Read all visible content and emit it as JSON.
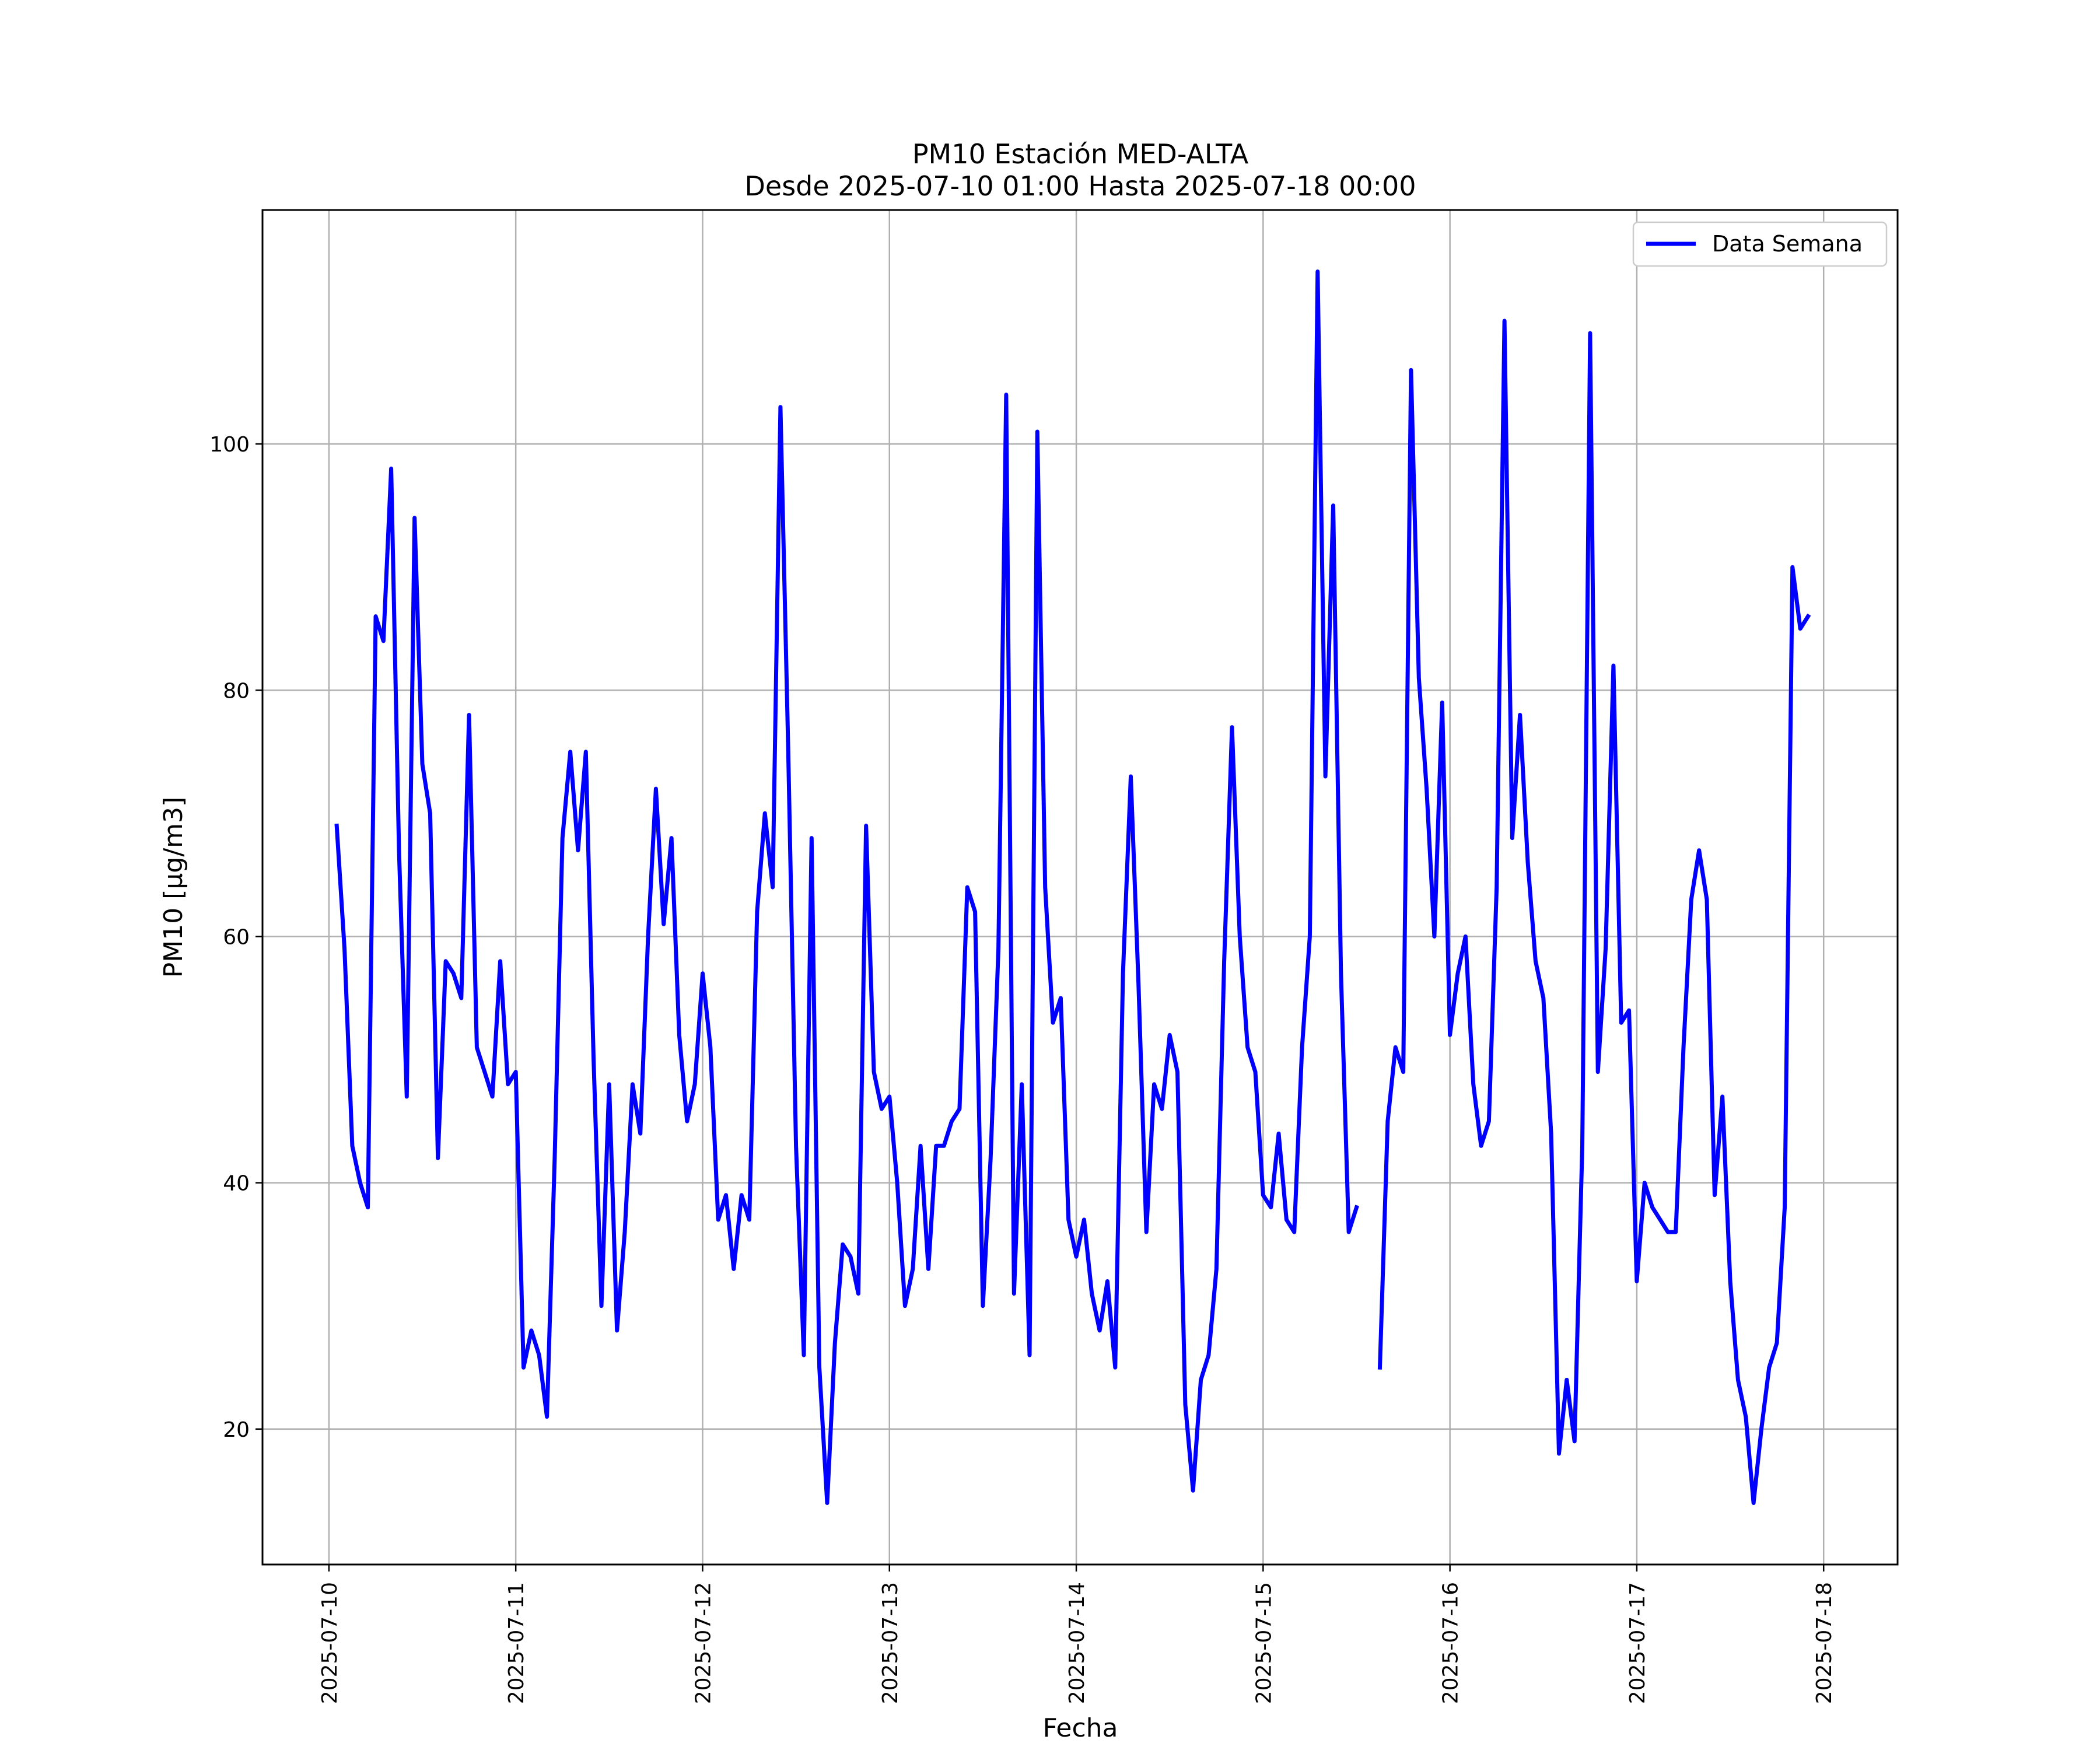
{
  "chart_data": {
    "type": "line",
    "title": "PM10 Estación MED-ALTA",
    "subtitle": "Desde 2025-07-10 01:00 Hasta 2025-07-18 00:00",
    "xlabel": "Fecha",
    "ylabel": "PM10 [μg/m3]",
    "xlim": [
      "2025-07-09T15:28",
      "2025-07-18T09:30"
    ],
    "ylim": [
      9,
      119
    ],
    "x_ticks": [
      "2025-07-10",
      "2025-07-11",
      "2025-07-12",
      "2025-07-13",
      "2025-07-14",
      "2025-07-15",
      "2025-07-16",
      "2025-07-17",
      "2025-07-18"
    ],
    "y_ticks": [
      20,
      40,
      60,
      80,
      100
    ],
    "grid": true,
    "legend": {
      "position": "top-right",
      "entries": [
        "Data Semana"
      ]
    },
    "x_start": "2025-07-10T01:00",
    "x_step_hours": 1,
    "series": [
      {
        "name": "Data Semana",
        "color": "#0000ff",
        "values": [
          69,
          59,
          43,
          40,
          38,
          86,
          84,
          98,
          67,
          47,
          94,
          74,
          70,
          42,
          58,
          57,
          55,
          78,
          51,
          49,
          47,
          58,
          48,
          49,
          25,
          28,
          26,
          21,
          42,
          68,
          75,
          67,
          75,
          50,
          30,
          48,
          28,
          36,
          48,
          44,
          60,
          72,
          61,
          68,
          52,
          45,
          48,
          57,
          51,
          37,
          39,
          33,
          39,
          37,
          62,
          70,
          64,
          103,
          75,
          43,
          26,
          68,
          25,
          14,
          27,
          35,
          34,
          31,
          69,
          49,
          46,
          47,
          40,
          30,
          33,
          43,
          33,
          43,
          43,
          45,
          46,
          64,
          62,
          30,
          42,
          59,
          104,
          31,
          48,
          26,
          101,
          64,
          53,
          55,
          37,
          34,
          37,
          31,
          28,
          32,
          25,
          57,
          73,
          56,
          36,
          48,
          46,
          52,
          49,
          22,
          15,
          24,
          26,
          33,
          58,
          77,
          60,
          51,
          49,
          39,
          38,
          44,
          37,
          36,
          51,
          60,
          114,
          73,
          95,
          57,
          36,
          38,
          null,
          null,
          25,
          45,
          51,
          49,
          106,
          81,
          72,
          60,
          79,
          52,
          57,
          60,
          48,
          43,
          45,
          64,
          110,
          68,
          78,
          66,
          58,
          55,
          44,
          18,
          24,
          19,
          43,
          109,
          49,
          59,
          82,
          53,
          54,
          32,
          40,
          38,
          37,
          36,
          36,
          51,
          63,
          67,
          63,
          39,
          47,
          32,
          24,
          21,
          14,
          20,
          25,
          27,
          38,
          90,
          85,
          86
        ]
      }
    ]
  }
}
